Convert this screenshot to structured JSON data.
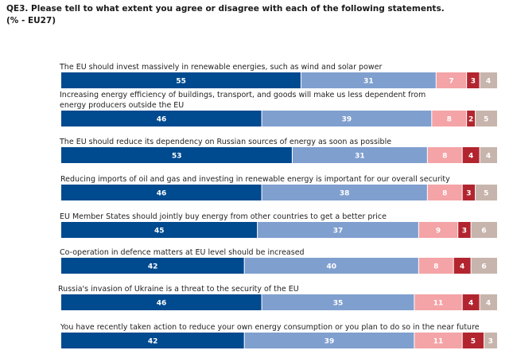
{
  "question": {
    "code": "QE3. Please tell to what extent you agree or disagree with each of the following statements.",
    "scope": "(% - EU27)"
  },
  "chart_data": {
    "type": "bar",
    "orientation": "horizontal",
    "stacked": true,
    "xlim": [
      0,
      100
    ],
    "legend": "none",
    "categories": [
      [
        "The EU should invest massively in renewable energies, such as wind and solar power"
      ],
      [
        "Increasing energy efficiency of buildings, transport, and goods will make us less dependent from",
        "energy producers outside the EU"
      ],
      [
        "The EU should reduce its dependency on Russian sources of energy as soon as possible"
      ],
      [
        "Reducing imports of oil and gas and investing in renewable energy is important for our overall security"
      ],
      [
        "EU Member States should jointly buy energy from other countries to get a better price"
      ],
      [
        "Co-operation in defence matters at EU level should be increased"
      ],
      [
        "Russia's invasion of Ukraine is a threat to the security of the EU"
      ],
      [
        "You have recently taken action to reduce your own energy consumption or you plan to do so in the near future"
      ]
    ],
    "series": [
      {
        "color": "#004a8f",
        "values": [
          55,
          46,
          53,
          46,
          45,
          42,
          46,
          42
        ]
      },
      {
        "color": "#7f9fcf",
        "values": [
          31,
          39,
          31,
          38,
          37,
          40,
          35,
          39
        ]
      },
      {
        "color": "#f4a3a6",
        "values": [
          7,
          8,
          8,
          8,
          9,
          8,
          11,
          11
        ]
      },
      {
        "color": "#b2252f",
        "values": [
          3,
          2,
          4,
          3,
          3,
          4,
          4,
          5
        ]
      },
      {
        "color": "#c7b5ad",
        "values": [
          4,
          5,
          4,
          5,
          6,
          6,
          4,
          3
        ]
      }
    ]
  }
}
